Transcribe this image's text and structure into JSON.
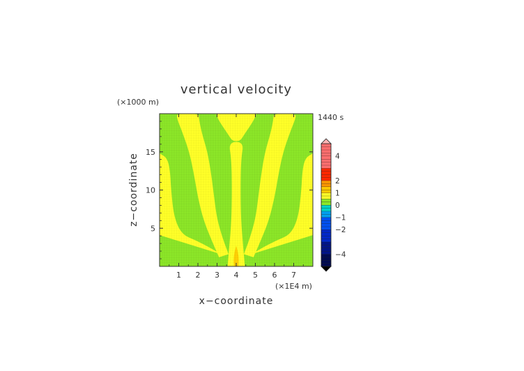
{
  "chart_data": {
    "type": "heatmap",
    "title": "vertical velocity",
    "xlabel": "x−coordinate",
    "ylabel": "z−coordinate",
    "x_unit_label": "(×1E4 m)",
    "y_unit_label": "(×1000 m)",
    "time_label": "1440 s",
    "xlim": [
      0,
      8
    ],
    "ylim": [
      0,
      20
    ],
    "x_ticks": [
      1,
      2,
      3,
      4,
      5,
      6,
      7
    ],
    "x_tick_labels": [
      "1",
      "2",
      "3",
      "4",
      "5",
      "6",
      "7"
    ],
    "y_ticks": [
      5,
      10,
      15
    ],
    "y_tick_labels": [
      "5",
      "10",
      "15"
    ],
    "colorbar": {
      "tick_values": [
        4,
        2,
        1,
        0,
        -1,
        -2,
        -4
      ],
      "tick_labels": [
        "4",
        "2",
        "1",
        "0",
        "−1",
        "−2",
        "−4"
      ],
      "min": -5,
      "max": 5,
      "colors": {
        "-5": "#000a50",
        "-4": "#001488",
        "-3": "#0028c8",
        "-2": "#0050f0",
        "-1": "#00a0f0",
        "-0.5": "#00d2c8",
        "0": "#8ce628",
        "0.5": "#ffff28",
        "1": "#ffc800",
        "1.5": "#ff9600",
        "2": "#ff2800",
        "3": "#ff6e6e",
        "5": "#ffb4b4"
      }
    },
    "field_description_levels": {
      "background": 0,
      "plumes": 0.5,
      "core": 1
    },
    "plumes": [
      {
        "name": "center-stem",
        "left": [
          [
            3.55,
            0
          ],
          [
            3.65,
            3
          ],
          [
            3.75,
            6
          ],
          [
            3.78,
            10
          ],
          [
            3.75,
            14
          ],
          [
            3.6,
            16.3
          ]
        ],
        "right": [
          [
            4.45,
            0
          ],
          [
            4.35,
            3
          ],
          [
            4.25,
            6
          ],
          [
            4.22,
            10
          ],
          [
            4.25,
            14
          ],
          [
            4.4,
            16.3
          ]
        ]
      },
      {
        "name": "inner-left-arm",
        "left": [
          [
            3.1,
            1.2
          ],
          [
            2.7,
            3.5
          ],
          [
            2.3,
            6
          ],
          [
            2.0,
            9
          ],
          [
            1.8,
            12
          ],
          [
            1.55,
            15
          ],
          [
            1.2,
            17.5
          ],
          [
            0.9,
            19.4
          ],
          [
            0.9,
            20
          ]
        ],
        "right": [
          [
            3.6,
            1.6
          ],
          [
            3.3,
            3.6
          ],
          [
            3.0,
            6.2
          ],
          [
            2.85,
            9
          ],
          [
            2.7,
            12
          ],
          [
            2.5,
            15
          ],
          [
            2.2,
            17.5
          ],
          [
            2.05,
            19.4
          ],
          [
            2.05,
            20
          ]
        ]
      },
      {
        "name": "inner-right-arm",
        "left": [
          [
            4.4,
            1.6
          ],
          [
            4.7,
            3.6
          ],
          [
            5.0,
            6.2
          ],
          [
            5.15,
            9
          ],
          [
            5.3,
            12
          ],
          [
            5.5,
            15
          ],
          [
            5.8,
            17.5
          ],
          [
            5.95,
            19.4
          ],
          [
            5.95,
            20
          ]
        ],
        "right": [
          [
            4.9,
            1.2
          ],
          [
            5.3,
            3.5
          ],
          [
            5.7,
            6
          ],
          [
            6.0,
            9
          ],
          [
            6.2,
            12
          ],
          [
            6.45,
            15
          ],
          [
            6.8,
            17.5
          ],
          [
            7.1,
            19.4
          ],
          [
            7.1,
            20
          ]
        ]
      },
      {
        "name": "outer-left-arm",
        "left": [
          [
            0,
            4.1
          ],
          [
            0,
            14.8
          ]
        ],
        "right": [
          [
            3.2,
            1.6
          ],
          [
            2.6,
            2.5
          ],
          [
            1.9,
            3.4
          ],
          [
            1.15,
            4.2
          ],
          [
            0.75,
            6.5
          ],
          [
            0.6,
            10
          ],
          [
            0.55,
            12.5
          ],
          [
            0.4,
            14.2
          ],
          [
            0,
            14.8
          ]
        ]
      },
      {
        "name": "outer-right-arm",
        "left": [
          [
            8,
            4.1
          ],
          [
            8,
            14.8
          ]
        ],
        "right": [
          [
            4.8,
            1.6
          ],
          [
            5.4,
            2.5
          ],
          [
            6.1,
            3.4
          ],
          [
            6.85,
            4.2
          ],
          [
            7.25,
            6.5
          ],
          [
            7.4,
            10
          ],
          [
            7.45,
            12.5
          ],
          [
            7.6,
            14.2
          ],
          [
            8,
            14.8
          ]
        ]
      },
      {
        "name": "top-center-lobe",
        "left": [
          [
            2.95,
            20
          ],
          [
            3.05,
            19.3
          ],
          [
            3.3,
            18.3
          ],
          [
            3.6,
            17.2
          ],
          [
            3.8,
            16.4
          ]
        ],
        "right": [
          [
            5.05,
            20
          ],
          [
            4.95,
            19.3
          ],
          [
            4.7,
            18.3
          ],
          [
            4.4,
            17.2
          ],
          [
            4.2,
            16.4
          ]
        ]
      }
    ]
  }
}
